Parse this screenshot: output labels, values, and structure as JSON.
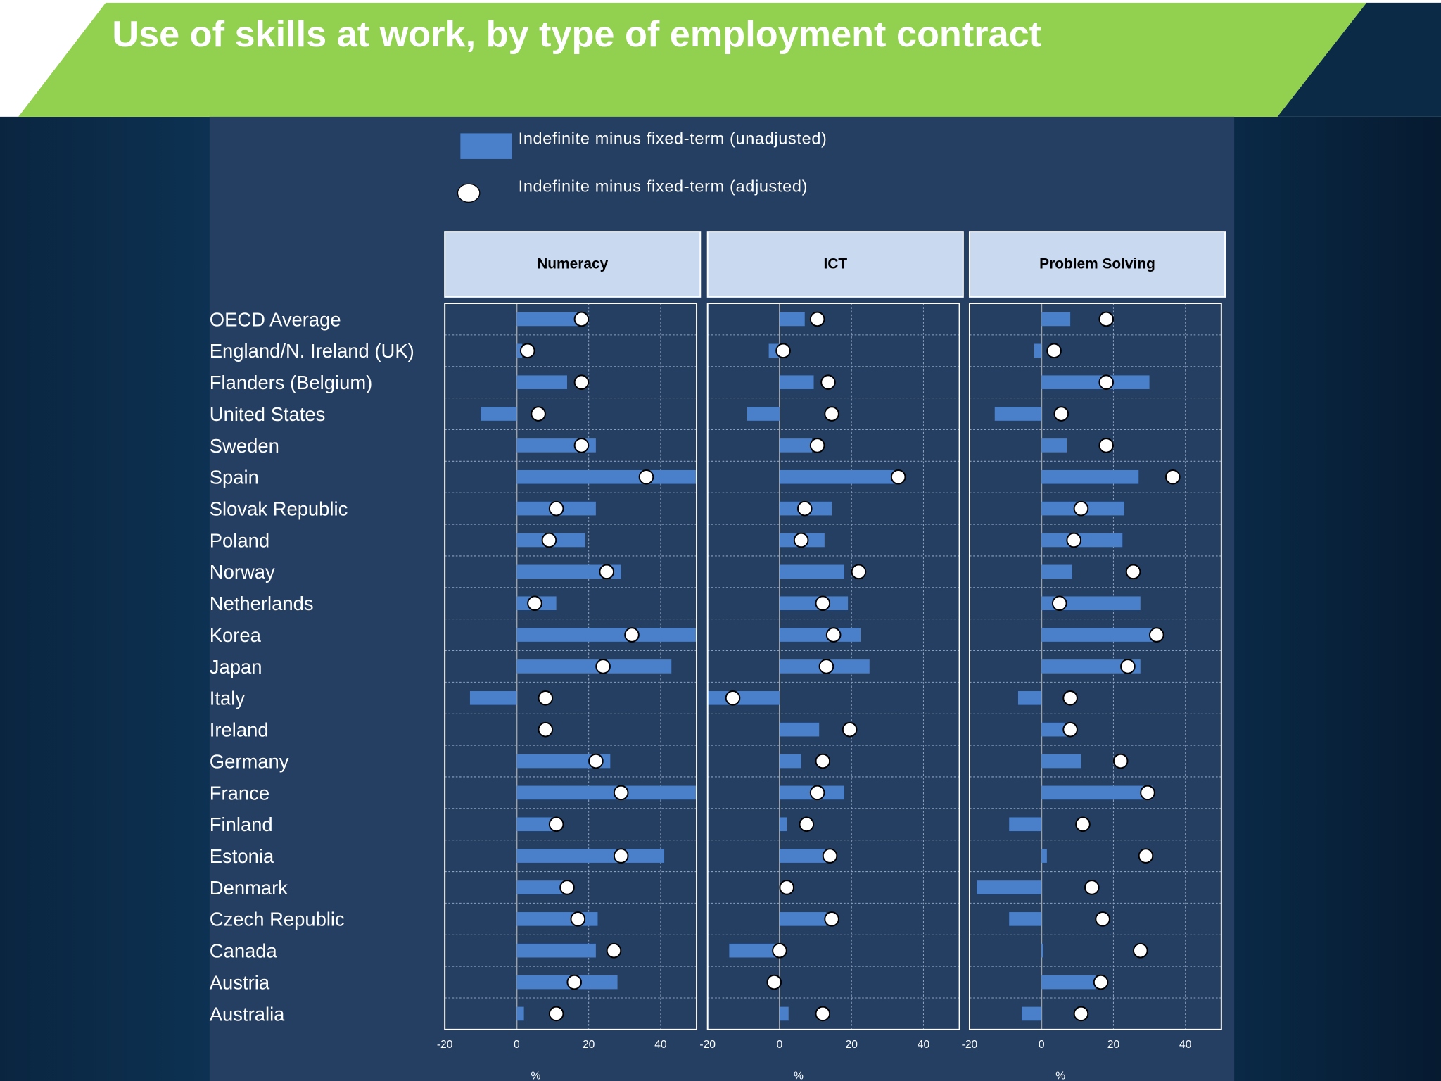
{
  "chart_data": {
    "type": "bar",
    "title": "Use of skills at work, by type of employment contract",
    "categories": [
      "OECD Average",
      "England/N. Ireland (UK)",
      "Flanders (Belgium)",
      "United States",
      "Sweden",
      "Spain",
      "Slovak Republic",
      "Poland",
      "Norway",
      "Netherlands",
      "Korea",
      "Japan",
      "Italy",
      "Ireland",
      "Germany",
      "France",
      "Finland",
      "Estonia",
      "Denmark",
      "Czech Republic",
      "Canada",
      "Austria",
      "Australia"
    ],
    "series": [
      {
        "name": "Indefinite minus fixed-term (unadjusted)",
        "color": "#4a7fc9",
        "marker": "bar"
      },
      {
        "name": "Indefinite minus fixed-term (adjusted)",
        "color": "#ffffff",
        "marker": "circle"
      }
    ],
    "xlim": [
      -20,
      50
    ],
    "xticks": [
      -20,
      0,
      20,
      40
    ],
    "xlabel": "%",
    "grid": true,
    "panels": [
      {
        "title": "Numeracy",
        "values": [
          [
            17,
            1.5,
            14,
            -10,
            22,
            50,
            22,
            19,
            29,
            11,
            50,
            43,
            -13,
            0,
            26,
            50,
            10,
            41,
            13,
            22.5,
            22,
            28,
            2
          ],
          [
            18,
            3,
            18,
            6,
            18,
            36,
            11,
            9,
            25,
            5,
            32,
            24,
            8,
            8,
            22,
            29,
            11,
            29,
            14,
            17,
            27,
            16,
            11
          ]
        ]
      },
      {
        "title": "ICT",
        "values": [
          [
            7,
            -3,
            9.5,
            -9,
            9,
            32.5,
            14.5,
            12.5,
            18,
            19,
            22.5,
            25,
            -20,
            11,
            6,
            18,
            2,
            13,
            0,
            13,
            -14,
            0,
            2.5
          ],
          [
            10.5,
            1,
            13.5,
            14.5,
            10.5,
            33,
            7,
            6,
            22,
            12,
            15,
            13,
            -13,
            19.5,
            12,
            10.5,
            7.5,
            14,
            2,
            14.5,
            0,
            -1.5,
            12
          ]
        ]
      },
      {
        "title": "Problem Solving",
        "values": [
          [
            8,
            -2,
            30,
            -13,
            7,
            27,
            23,
            22.5,
            8.5,
            27.5,
            32.5,
            27.5,
            -6.5,
            7.5,
            11,
            31,
            -9,
            1.5,
            -18,
            -9,
            0.5,
            15,
            -5.5
          ],
          [
            18,
            3.5,
            18,
            5.5,
            18,
            36.5,
            11,
            9,
            25.5,
            5,
            32,
            24,
            8,
            8,
            22,
            29.5,
            11.5,
            29,
            14,
            17,
            27.5,
            16.5,
            11
          ]
        ]
      }
    ]
  }
}
